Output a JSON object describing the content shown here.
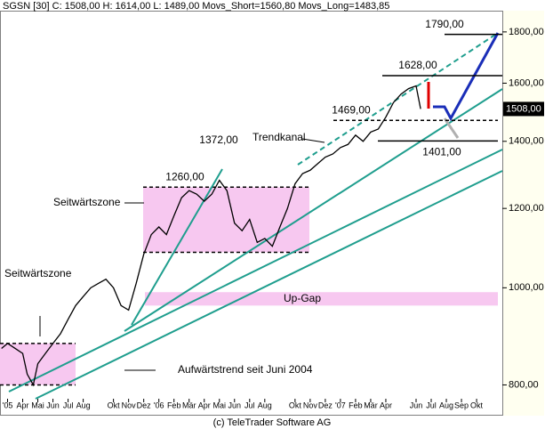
{
  "chart_data": {
    "type": "line",
    "title": "SGSN [30] C: 1508,00 H: 1614,00 L: 1489,00 Movs_Short=1560,80 Movs_Long=1483,85",
    "footer": "(c) TeleTrader Software AG",
    "log_scale": true,
    "ylim": [
      775,
      1890
    ],
    "yticks": [
      {
        "value": 800,
        "label": "800,00"
      },
      {
        "value": 1000,
        "label": "1000,00"
      },
      {
        "value": 1200,
        "label": "1200,00"
      },
      {
        "value": 1400,
        "label": "1400,00"
      },
      {
        "value": 1600,
        "label": "1600,00"
      },
      {
        "value": 1800,
        "label": "1800,00"
      }
    ],
    "xlim": [
      1.5,
      34.7
    ],
    "xticks": [
      {
        "value": 2,
        "label": "'05"
      },
      {
        "value": 3,
        "label": "Apr"
      },
      {
        "value": 4,
        "label": "Mai"
      },
      {
        "value": 5,
        "label": "Jun"
      },
      {
        "value": 6,
        "label": "Jul"
      },
      {
        "value": 7,
        "label": "Aug"
      },
      {
        "value": 9,
        "label": "Okt"
      },
      {
        "value": 10,
        "label": "Nov"
      },
      {
        "value": 11,
        "label": "Dez"
      },
      {
        "value": 12,
        "label": "'06"
      },
      {
        "value": 13,
        "label": "Feb"
      },
      {
        "value": 14,
        "label": "Mär"
      },
      {
        "value": 15,
        "label": "Apr"
      },
      {
        "value": 16,
        "label": "Mai"
      },
      {
        "value": 17,
        "label": "Jun"
      },
      {
        "value": 18,
        "label": "Jul"
      },
      {
        "value": 19,
        "label": "Aug"
      },
      {
        "value": 21,
        "label": "Okt"
      },
      {
        "value": 22,
        "label": "Nov"
      },
      {
        "value": 23,
        "label": "Dez"
      },
      {
        "value": 24,
        "label": "'07"
      },
      {
        "value": 25,
        "label": "Feb"
      },
      {
        "value": 26,
        "label": "Mär"
      },
      {
        "value": 27,
        "label": "Apr"
      },
      {
        "value": 29,
        "label": "Jun"
      },
      {
        "value": 30,
        "label": "Jul"
      },
      {
        "value": 31,
        "label": "Aug"
      },
      {
        "value": 32,
        "label": "Sep"
      },
      {
        "value": 33,
        "label": "Okt"
      }
    ],
    "x": [
      1.6,
      2,
      2.5,
      3,
      3.3,
      3.7,
      4,
      4.5,
      5,
      5.5,
      6,
      6.5,
      7,
      7.5,
      8,
      8.5,
      9,
      9.5,
      10,
      10.5,
      11,
      11.5,
      12,
      12.5,
      13,
      13.5,
      14,
      14.5,
      15,
      15.5,
      16,
      16.5,
      17,
      17.5,
      18,
      18.5,
      19,
      19.5,
      20,
      20.5,
      21,
      21.5,
      22,
      22.5,
      23,
      23.5,
      24,
      24.5,
      25,
      25.5,
      26,
      26.5,
      27,
      27.5,
      28,
      28.5,
      29,
      29.3
    ],
    "series": [
      {
        "color": "#000000",
        "values": [
          870,
          880,
          870,
          860,
          820,
          800,
          840,
          860,
          880,
          900,
          930,
          960,
          980,
          1000,
          1010,
          1020,
          1000,
          960,
          950,
          1010,
          1080,
          1130,
          1150,
          1130,
          1180,
          1230,
          1250,
          1240,
          1220,
          1240,
          1280,
          1250,
          1160,
          1140,
          1170,
          1110,
          1120,
          1100,
          1150,
          1200,
          1270,
          1300,
          1310,
          1330,
          1350,
          1360,
          1380,
          1390,
          1420,
          1400,
          1430,
          1440,
          1480,
          1530,
          1560,
          1580,
          1590,
          1508
        ]
      }
    ],
    "last_price": {
      "value": 1508,
      "label": "1508,00"
    },
    "levels": [
      {
        "value": 1790,
        "label": "1790,00"
      },
      {
        "value": 1628,
        "label": "1628,00"
      },
      {
        "value": 1469,
        "label": "1469,00"
      },
      {
        "value": 1401,
        "label": "1401,00"
      },
      {
        "value": 1372,
        "label": "1372,00"
      },
      {
        "value": 1260,
        "label": "1260,00"
      }
    ],
    "zones": [
      {
        "label": "Seitwärtszone",
        "low": 800,
        "high": 880
      },
      {
        "label": "Seitwärtszone",
        "low": 1085,
        "high": 1260
      },
      {
        "label": "Up-Gap",
        "low": 960,
        "high": 990
      }
    ],
    "annotations": [
      "Trendkanal",
      "Aufwärtstrend seit Juni 2004"
    ]
  }
}
